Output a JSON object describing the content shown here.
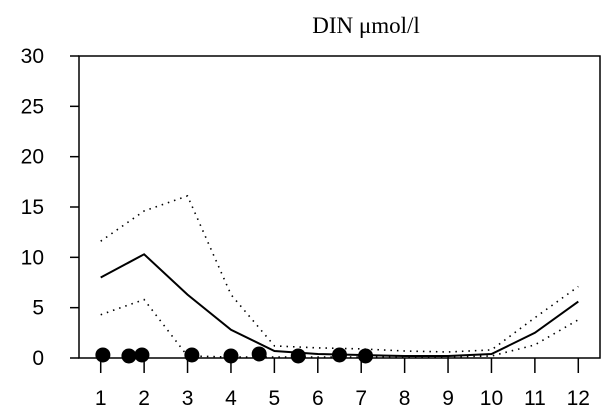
{
  "chart_data": {
    "type": "line",
    "title": "DIN    μmol/l",
    "xlabel": "",
    "ylabel": "",
    "x_ticks": [
      "1",
      "2",
      "3",
      "4",
      "5",
      "6",
      "7",
      "8",
      "9",
      "10",
      "11",
      "12"
    ],
    "y_ticks": [
      "0",
      "5",
      "10",
      "15",
      "20",
      "25",
      "30"
    ],
    "xlim": [
      0.5,
      12.5
    ],
    "ylim": [
      0,
      30
    ],
    "grid": false,
    "series": [
      {
        "style": "solid",
        "points": [
          [
            1,
            8.0
          ],
          [
            2,
            10.3
          ],
          [
            3,
            6.3
          ],
          [
            4,
            2.8
          ],
          [
            5,
            0.7
          ],
          [
            6,
            0.4
          ],
          [
            7,
            0.3
          ],
          [
            8,
            0.2
          ],
          [
            9,
            0.2
          ],
          [
            10,
            0.4
          ],
          [
            11,
            2.5
          ],
          [
            12,
            5.6
          ]
        ]
      },
      {
        "style": "dotted",
        "points": [
          [
            1,
            11.6
          ],
          [
            2,
            14.6
          ],
          [
            3,
            16.1
          ],
          [
            4,
            6.3
          ],
          [
            5,
            1.2
          ],
          [
            6,
            1.0
          ],
          [
            7,
            0.9
          ],
          [
            8,
            0.7
          ],
          [
            9,
            0.6
          ],
          [
            10,
            0.8
          ],
          [
            11,
            4.0
          ],
          [
            12,
            7.1
          ]
        ]
      },
      {
        "style": "dotted",
        "points": [
          [
            1,
            4.3
          ],
          [
            2,
            5.8
          ],
          [
            3,
            0.2
          ],
          [
            4,
            0.1
          ],
          [
            5,
            0.1
          ],
          [
            6,
            0.1
          ],
          [
            7,
            0.1
          ],
          [
            8,
            0.1
          ],
          [
            9,
            0.1
          ],
          [
            10,
            0.2
          ],
          [
            11,
            1.3
          ],
          [
            12,
            3.8
          ]
        ]
      },
      {
        "style": "markers",
        "points": [
          [
            1.05,
            0.3
          ],
          [
            1.65,
            0.2
          ],
          [
            1.95,
            0.3
          ],
          [
            3.1,
            0.3
          ],
          [
            4.0,
            0.2
          ],
          [
            4.65,
            0.4
          ],
          [
            5.55,
            0.2
          ],
          [
            6.5,
            0.3
          ],
          [
            7.1,
            0.2
          ]
        ]
      }
    ]
  }
}
